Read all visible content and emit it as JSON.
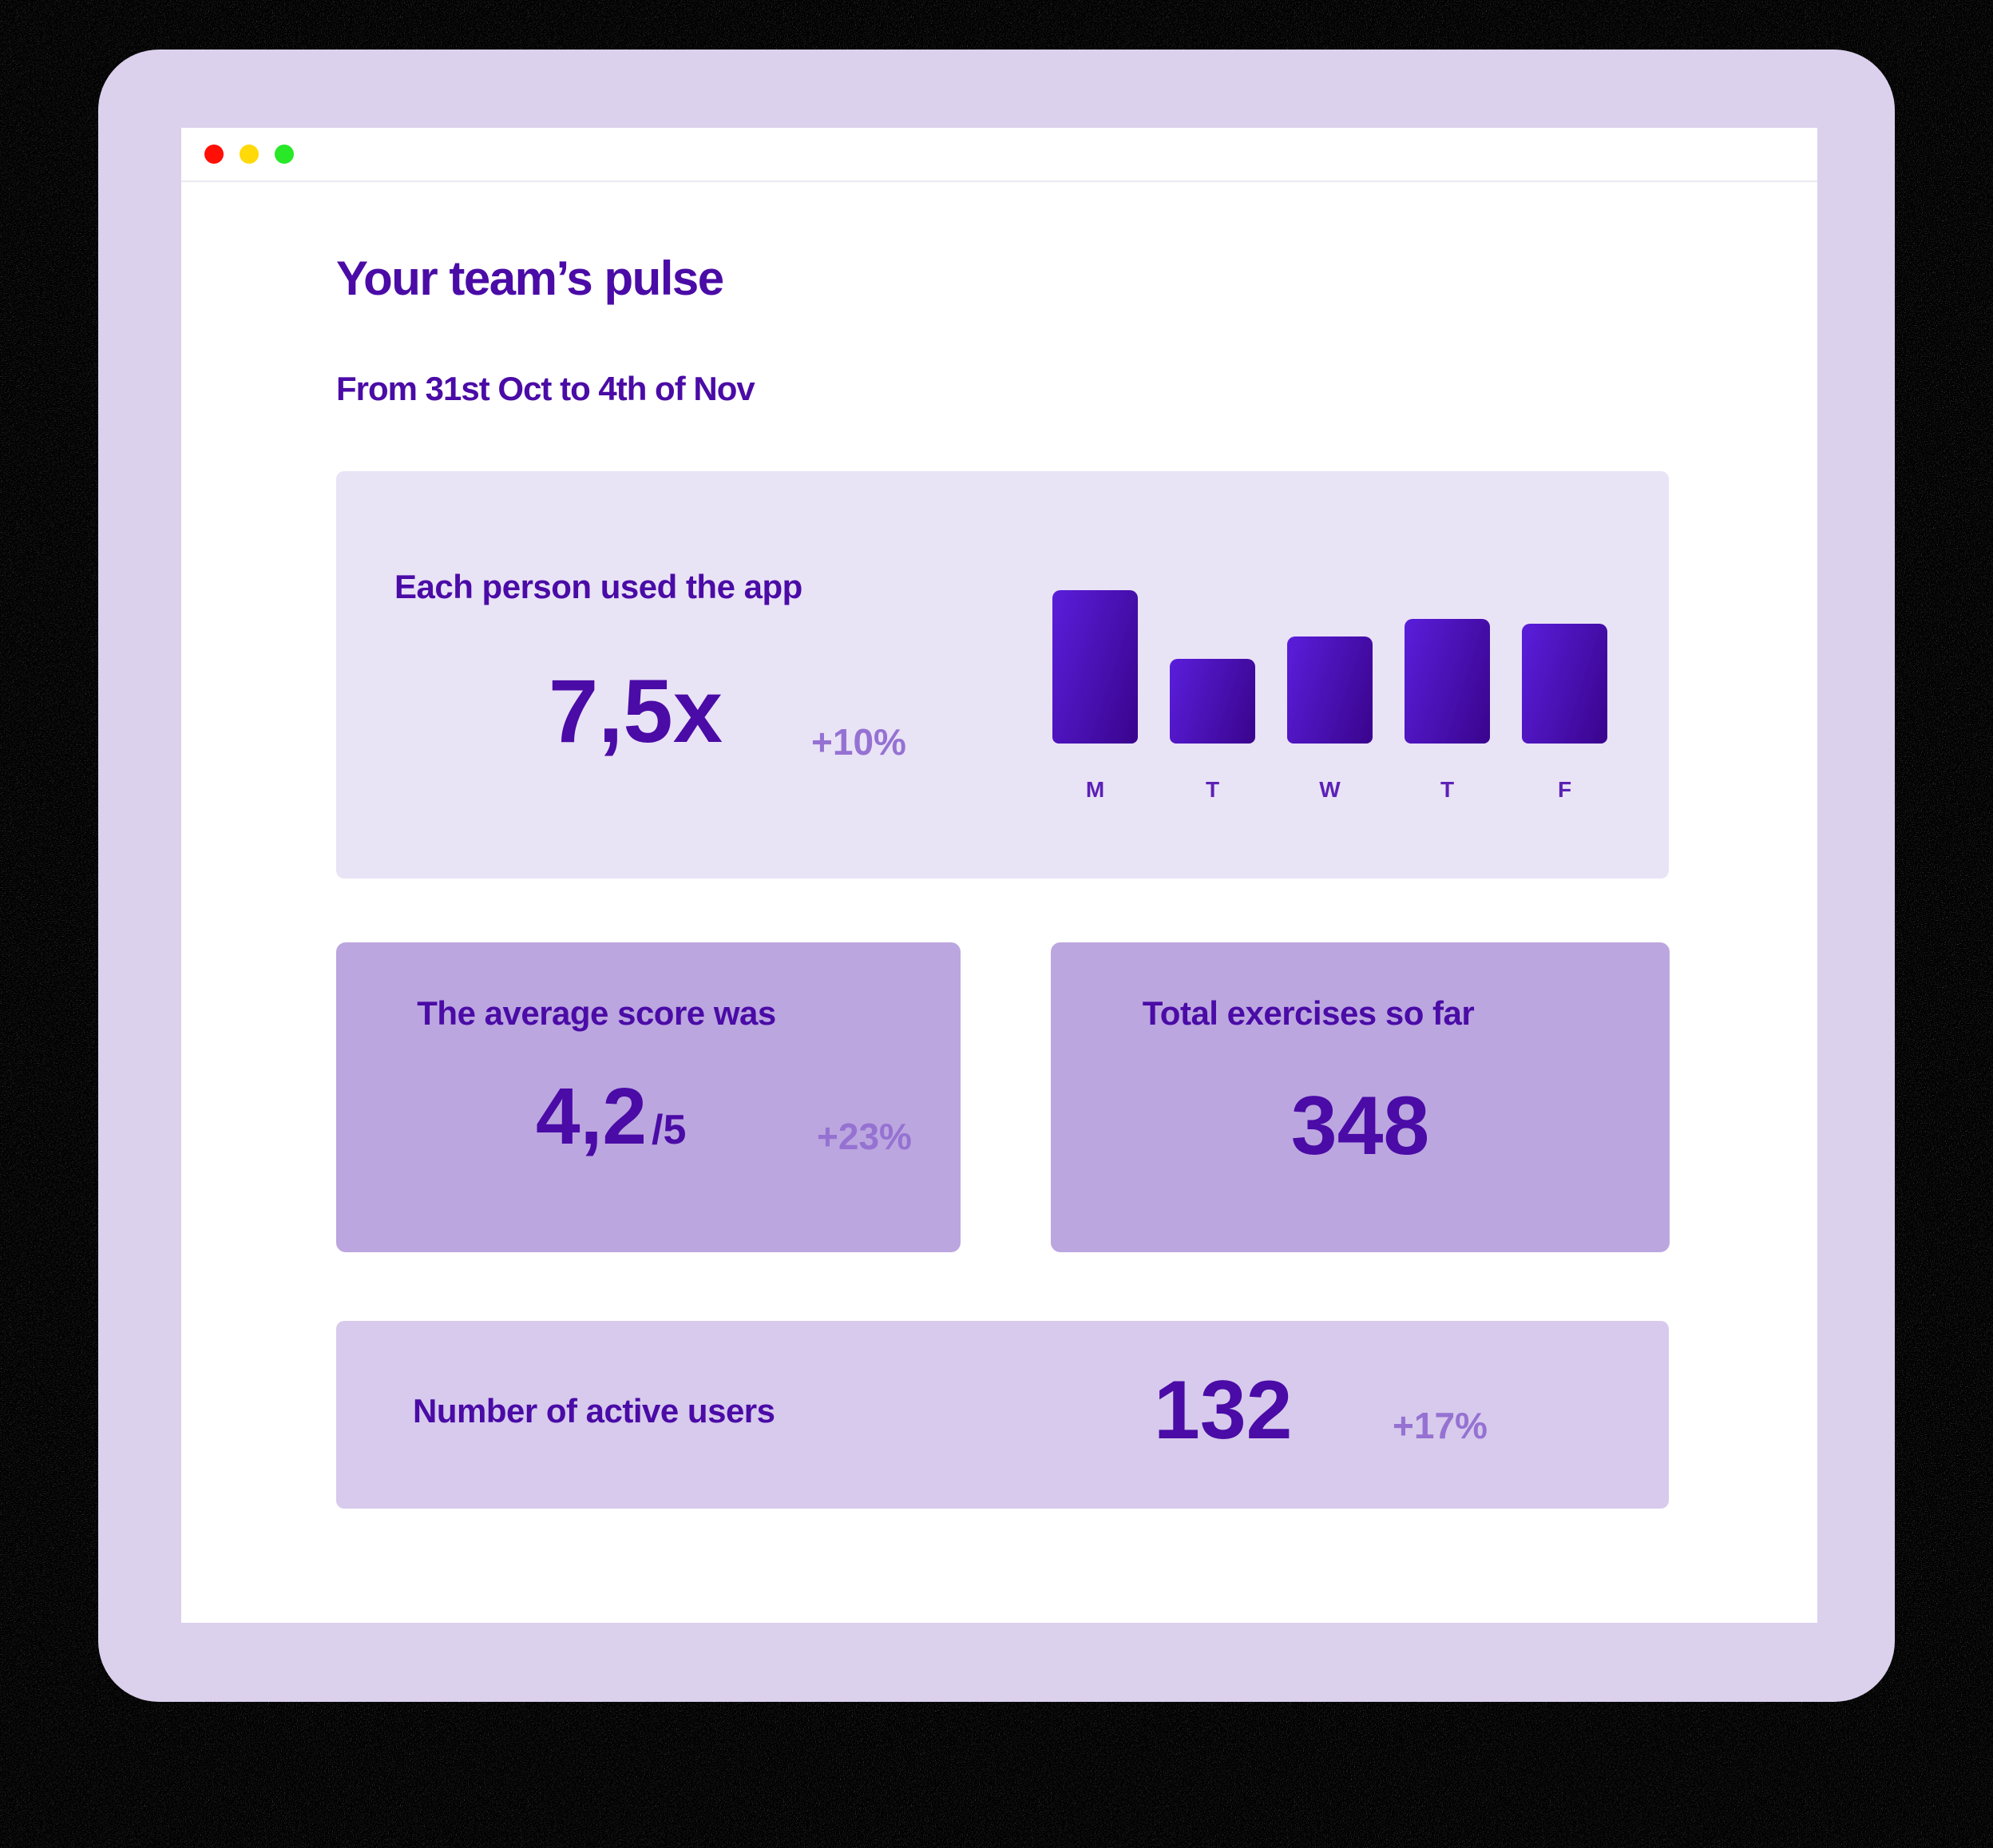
{
  "window": {
    "traffic_lights": [
      {
        "name": "close",
        "color": "#FF0F05"
      },
      {
        "name": "minimize",
        "color": "#FFD908"
      },
      {
        "name": "zoom",
        "color": "#28E828"
      }
    ]
  },
  "header": {
    "title": "Your team’s pulse",
    "date_range": "From 31st Oct to 4th of Nov"
  },
  "cards": {
    "usage": {
      "heading": "Each person used the app",
      "value": "7,5x",
      "delta": "+10%"
    },
    "score": {
      "heading": "The average score was",
      "value": "4,2",
      "suffix": "/5",
      "delta": "+23%"
    },
    "exercises": {
      "heading": "Total exercises so far",
      "value": "348"
    },
    "active_users": {
      "heading": "Number of active users",
      "value": "132",
      "delta": "+17%"
    }
  },
  "chart_data": {
    "type": "bar",
    "title": "Each person used the app",
    "categories": [
      "M",
      "T",
      "W",
      "T",
      "F"
    ],
    "values": [
      10,
      5.5,
      7,
      8.1,
      7.8
    ],
    "xlabel": "",
    "ylabel": "",
    "ylim": [
      0,
      10
    ],
    "grid": false,
    "legend": false,
    "note": "No numeric axis is shown in the UI; values are estimated from relative bar heights (Monday tallest).",
    "bar_gradient": [
      "#5A1EDB",
      "#3B0590"
    ]
  },
  "colors": {
    "page_background": "#000000",
    "window_frame": "#DBD1ED",
    "browser_background": "#FFFFFF",
    "card_light": "#E9E3F6",
    "card_medium": "#BCA6DF",
    "card_soft": "#D7CAEC",
    "text_purple": "#4A0BA6",
    "delta_purple": "#9572D2",
    "bar_label_purple": "#5C21B6"
  }
}
